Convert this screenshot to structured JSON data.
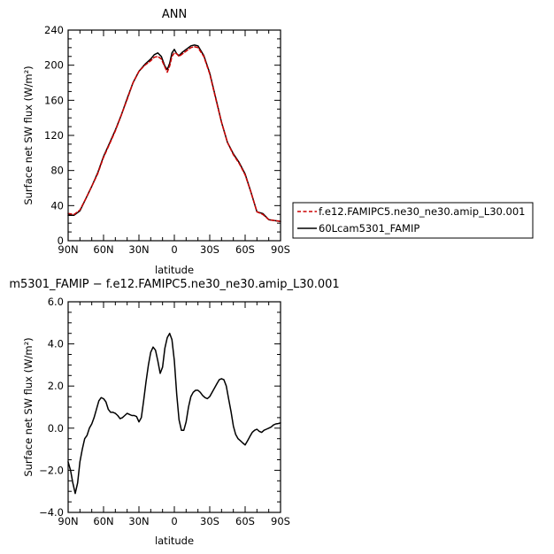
{
  "chart_data": [
    {
      "type": "line",
      "title": "ANN",
      "xlabel": "latitude",
      "ylabel": "Surface net SW flux (W/m²)",
      "xlim": [
        -90,
        90
      ],
      "ylim": [
        0,
        240
      ],
      "x_ticks": [
        -90,
        -60,
        -30,
        0,
        30,
        60,
        90
      ],
      "x_tick_labels": [
        "90N",
        "60N",
        "30N",
        "0",
        "30S",
        "60S",
        "90S"
      ],
      "y_ticks": [
        0,
        40,
        80,
        120,
        160,
        200,
        240
      ],
      "y_tick_labels": [
        "0",
        "40",
        "80",
        "120",
        "160",
        "200",
        "240"
      ],
      "legend_position": "right",
      "series": [
        {
          "name": "f.e12.FAMIPC5.ne30_ne30.amip_L30.001",
          "color": "#cc0000",
          "dash": "dashed",
          "x": [
            -90,
            -85,
            -80,
            -75,
            -70,
            -65,
            -60,
            -55,
            -50,
            -45,
            -40,
            -35,
            -30,
            -25,
            -20,
            -17,
            -14,
            -11,
            -8,
            -6,
            -4,
            -2,
            0,
            2,
            4,
            7,
            10,
            14,
            17,
            20,
            25,
            30,
            35,
            40,
            45,
            50,
            55,
            60,
            65,
            70,
            75,
            80,
            85,
            90
          ],
          "y": [
            31,
            30,
            35,
            48,
            62,
            76,
            95,
            110,
            125,
            143,
            161,
            180,
            193,
            200,
            205,
            209,
            210,
            207,
            198,
            192,
            199,
            210,
            214,
            213,
            210,
            213,
            216,
            220,
            221,
            220,
            210,
            190,
            162,
            135,
            112,
            98,
            88,
            75,
            55,
            33,
            30,
            24,
            23,
            22
          ]
        },
        {
          "name": "60Lcam5301_FAMIP",
          "color": "#000000",
          "dash": "solid",
          "x": [
            -90,
            -85,
            -80,
            -75,
            -70,
            -65,
            -60,
            -55,
            -50,
            -45,
            -40,
            -35,
            -30,
            -25,
            -20,
            -17,
            -14,
            -11,
            -8,
            -6,
            -4,
            -2,
            0,
            2,
            4,
            7,
            10,
            14,
            17,
            20,
            25,
            30,
            35,
            40,
            45,
            50,
            55,
            60,
            65,
            70,
            75,
            80,
            85,
            90
          ],
          "y": [
            29,
            29,
            34,
            48,
            62,
            77,
            96,
            111,
            126,
            143,
            162,
            180,
            193,
            201,
            207,
            212,
            214,
            210,
            199,
            195,
            202,
            214,
            218,
            213,
            211,
            215,
            218,
            222,
            223,
            222,
            211,
            191,
            163,
            135,
            112,
            99,
            89,
            76,
            55,
            33,
            31,
            24,
            23,
            22
          ]
        }
      ]
    },
    {
      "type": "line",
      "title": "m5301_FAMIP − f.e12.FAMIPC5.ne30_ne30.amip_L30.001",
      "xlabel": "latitude",
      "ylabel": "Surface net SW flux (W/m²)",
      "xlim": [
        -90,
        90
      ],
      "ylim": [
        -4,
        6
      ],
      "x_ticks": [
        -90,
        -60,
        -30,
        0,
        30,
        60,
        90
      ],
      "x_tick_labels": [
        "90N",
        "60N",
        "30N",
        "0",
        "30S",
        "60S",
        "90S"
      ],
      "y_ticks": [
        -4,
        -2,
        0,
        2,
        4,
        6
      ],
      "y_tick_labels": [
        "−4.0",
        "−2.0",
        "0.0",
        "2.0",
        "4.0",
        "6.0"
      ],
      "series": [
        {
          "color": "#000000",
          "dash": "solid",
          "x": [
            -90,
            -88,
            -86,
            -84,
            -82,
            -80,
            -78,
            -76,
            -74,
            -72,
            -70,
            -68,
            -66,
            -64,
            -62,
            -60,
            -58,
            -56,
            -54,
            -52,
            -50,
            -48,
            -46,
            -44,
            -42,
            -40,
            -38,
            -36,
            -34,
            -32,
            -30,
            -28,
            -26,
            -24,
            -22,
            -20,
            -18,
            -16,
            -14,
            -12,
            -10,
            -8,
            -6,
            -4,
            -2,
            0,
            2,
            4,
            6,
            8,
            10,
            12,
            14,
            16,
            18,
            20,
            22,
            24,
            26,
            28,
            30,
            32,
            34,
            36,
            38,
            40,
            42,
            44,
            46,
            48,
            50,
            52,
            54,
            56,
            58,
            60,
            62,
            64,
            66,
            68,
            70,
            72,
            74,
            76,
            78,
            80,
            82,
            84,
            86,
            88,
            90
          ],
          "y": [
            -1.6,
            -2.0,
            -2.6,
            -3.1,
            -2.6,
            -1.6,
            -1.0,
            -0.5,
            -0.35,
            0.0,
            0.2,
            0.5,
            0.9,
            1.3,
            1.45,
            1.4,
            1.25,
            0.9,
            0.75,
            0.75,
            0.7,
            0.6,
            0.45,
            0.5,
            0.6,
            0.7,
            0.65,
            0.6,
            0.6,
            0.55,
            0.3,
            0.5,
            1.3,
            2.2,
            3.0,
            3.6,
            3.85,
            3.7,
            3.2,
            2.6,
            2.9,
            3.8,
            4.3,
            4.5,
            4.2,
            3.2,
            1.6,
            0.4,
            -0.1,
            -0.1,
            0.3,
            1.0,
            1.5,
            1.7,
            1.8,
            1.8,
            1.7,
            1.55,
            1.45,
            1.4,
            1.5,
            1.7,
            1.9,
            2.1,
            2.3,
            2.35,
            2.3,
            2.0,
            1.4,
            0.8,
            0.1,
            -0.3,
            -0.5,
            -0.6,
            -0.7,
            -0.8,
            -0.6,
            -0.4,
            -0.2,
            -0.1,
            -0.05,
            -0.15,
            -0.2,
            -0.1,
            -0.05,
            0.0,
            0.05,
            0.15,
            0.2,
            0.22,
            0.25
          ]
        }
      ]
    }
  ]
}
